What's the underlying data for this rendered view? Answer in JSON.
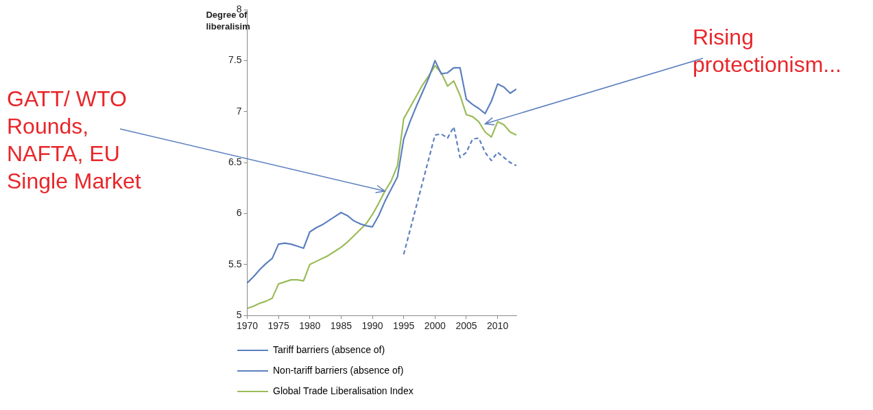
{
  "chart_data": {
    "type": "line",
    "ylabel": "Degree of liberalisim",
    "x": [
      1970,
      1971,
      1972,
      1973,
      1974,
      1975,
      1976,
      1977,
      1978,
      1979,
      1980,
      1981,
      1982,
      1983,
      1984,
      1985,
      1986,
      1987,
      1988,
      1989,
      1990,
      1991,
      1992,
      1993,
      1994,
      1995,
      1996,
      1997,
      1998,
      1999,
      2000,
      2001,
      2002,
      2003,
      2004,
      2005,
      2006,
      2007,
      2008,
      2009,
      2010,
      2011,
      2012,
      2013
    ],
    "series": [
      {
        "name": "Tariff barriers (absence of)",
        "color": "#5b7fbf",
        "line_style": "solid",
        "values": [
          5.32,
          5.38,
          5.45,
          5.51,
          5.56,
          5.7,
          5.71,
          5.7,
          5.68,
          5.66,
          5.82,
          5.86,
          5.89,
          5.93,
          5.97,
          6.01,
          5.98,
          5.93,
          5.9,
          5.88,
          5.87,
          5.98,
          6.12,
          6.24,
          6.36,
          6.73,
          6.9,
          7.05,
          7.19,
          7.33,
          7.5,
          7.37,
          7.38,
          7.43,
          7.43,
          7.12,
          7.07,
          7.03,
          6.98,
          7.1,
          7.27,
          7.24,
          7.18,
          7.22
        ]
      },
      {
        "name": "Non-tariff barriers (absence of)",
        "color": "#5b7fbf",
        "line_style": "dashed",
        "x": [
          1995,
          2000,
          2001,
          2002,
          2003,
          2004,
          2005,
          2006,
          2007,
          2008,
          2009,
          2010,
          2011,
          2012,
          2013
        ],
        "values": [
          5.6,
          6.77,
          6.78,
          6.74,
          6.85,
          6.55,
          6.6,
          6.73,
          6.74,
          6.6,
          6.52,
          6.6,
          6.55,
          6.5,
          6.47
        ]
      },
      {
        "name": "Global Trade Liberalisation Index",
        "color": "#9bbb59",
        "line_style": "solid",
        "values": [
          5.07,
          5.09,
          5.12,
          5.14,
          5.17,
          5.31,
          5.33,
          5.35,
          5.35,
          5.34,
          5.5,
          5.53,
          5.56,
          5.59,
          5.63,
          5.67,
          5.72,
          5.78,
          5.84,
          5.9,
          5.99,
          6.1,
          6.22,
          6.32,
          6.47,
          6.93,
          7.04,
          7.15,
          7.26,
          7.35,
          7.45,
          7.38,
          7.25,
          7.3,
          7.16,
          6.97,
          6.95,
          6.9,
          6.8,
          6.75,
          6.9,
          6.87,
          6.8,
          6.77
        ]
      }
    ],
    "xlim": [
      1970,
      2013
    ],
    "xticks": [
      1970,
      1975,
      1980,
      1985,
      1990,
      1995,
      2000,
      2005,
      2010
    ],
    "ylim": [
      5,
      8
    ],
    "yticks": [
      5,
      5.5,
      6,
      6.5,
      7,
      7.5,
      8
    ],
    "grid": false,
    "legend": "bottom",
    "marker": "none",
    "annotations": [
      {
        "text": "GATT/ WTO Rounds, NAFTA, EU Single Market",
        "x": 1992,
        "y": 6.22
      },
      {
        "text": "Rising protectionism...",
        "x": 2008,
        "y": 6.88
      }
    ]
  }
}
